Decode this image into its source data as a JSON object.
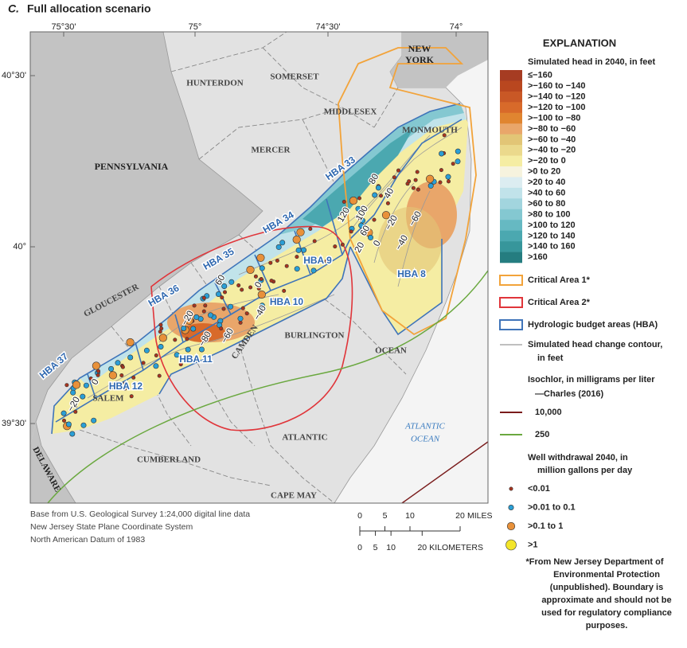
{
  "title": {
    "letter": "C.",
    "text": "Full allocation scenario"
  },
  "graticule": {
    "longitudes": [
      "75°30'",
      "75°",
      "74°30'",
      "74°"
    ],
    "latitudes": [
      "40°30'",
      "40°",
      "39°30'"
    ]
  },
  "places": [
    "HUNTERDON",
    "SOMERSET",
    "NEW",
    "YORK",
    "MIDDLESEX",
    "MONMOUTH",
    "MERCER",
    "PENNSYLVANIA",
    "BURLINGTON",
    "OCEAN",
    "GLOUCESTER",
    "CAMDEN",
    "SALEM",
    "ATLANTIC",
    "CUMBERLAND",
    "CAPE MAY",
    "DELAWARE"
  ],
  "ocean_label": [
    "ATLANTIC",
    "OCEAN"
  ],
  "hba_labels": [
    "HBA 33",
    "HBA 34",
    "HBA 35",
    "HBA 36",
    "HBA 37",
    "HBA 12",
    "HBA 11",
    "HBA 10",
    "HBA 9",
    "HBA 8"
  ],
  "contour_labels": [
    "80",
    "40",
    "120",
    "100",
    "60",
    "20",
    "0",
    "−20",
    "−40",
    "−60",
    "0",
    "60",
    "−20",
    "−40",
    "−60",
    "−80",
    "0",
    "−20"
  ],
  "legend": {
    "title": "EXPLANATION",
    "head_title": "Simulated head in 2040, in feet",
    "head_classes": [
      {
        "label": "≤−160",
        "color": "#a63c22"
      },
      {
        "label": ">−160 to −140",
        "color": "#b9471f"
      },
      {
        "label": ">−140 to −120",
        "color": "#c95826"
      },
      {
        "label": ">−120 to −100",
        "color": "#d86a2a"
      },
      {
        "label": ">−100 to −80",
        "color": "#e08530"
      },
      {
        "label": ">−80 to −60",
        "color": "#e9a66a"
      },
      {
        "label": ">−60 to −40",
        "color": "#e2c576"
      },
      {
        "label": ">−40 to −20",
        "color": "#ebd98c"
      },
      {
        "label": ">−20 to 0",
        "color": "#f5eda3"
      },
      {
        "label": ">0 to 20",
        "color": "#f6f3de"
      },
      {
        "label": ">20 to 40",
        "color": "#dcedf1"
      },
      {
        "label": ">40 to 60",
        "color": "#c1e3ea"
      },
      {
        "label": ">60 to 80",
        "color": "#a2d5de"
      },
      {
        "label": ">80 to 100",
        "color": "#84c8d1"
      },
      {
        "label": ">100 to 120",
        "color": "#66b9c2"
      },
      {
        "label": ">120 to 140",
        "color": "#4ba8b0"
      },
      {
        "label": ">140 to 160",
        "color": "#37969b"
      },
      {
        "label": ">160",
        "color": "#257d80"
      }
    ],
    "boxes": [
      {
        "label": "Critical Area 1*",
        "color": "#f2a33a"
      },
      {
        "label": "Critical Area 2*",
        "color": "#e0353a"
      },
      {
        "label": "Hydrologic budget areas (HBA)",
        "color": "#3f74b9"
      }
    ],
    "contour": {
      "label": [
        "Simulated head change contour,",
        "in feet"
      ],
      "color": "#aaaaaa"
    },
    "isochlor": {
      "title": "Isochlor, in milligrams per liter",
      "source": "—Charles (2016)",
      "lines": [
        {
          "label": "10,000",
          "color": "#7a1c1c"
        },
        {
          "label": "250",
          "color": "#6aa83f"
        }
      ]
    },
    "wells": {
      "title": [
        "Well withdrawal 2040, in",
        "million gallons per day"
      ],
      "classes": [
        {
          "label": "<0.01",
          "color": "#a8341f"
        },
        {
          "label": ">0.01 to 0.1",
          "color": "#2a9fd6"
        },
        {
          "label": ">0.1 to 1",
          "color": "#e8913a"
        },
        {
          "label": ">1",
          "color": "#f3e52a"
        }
      ]
    }
  },
  "credits": [
    "Base from U.S. Geological Survey 1:24,000 digital line data",
    "New Jersey State Plane Coordinate System",
    "North American Datum of 1983"
  ],
  "scale_bar": {
    "miles": [
      0,
      5,
      10,
      20
    ],
    "miles_unit": "MILES",
    "km": [
      0,
      5,
      10,
      20
    ],
    "km_unit": "KILOMETERS"
  },
  "footnote": [
    "*From New Jersey Department of",
    "Environmental Protection",
    "(unpublished). Boundary is",
    "approximate and should not be",
    "used for regulatory compliance",
    "purposes."
  ]
}
